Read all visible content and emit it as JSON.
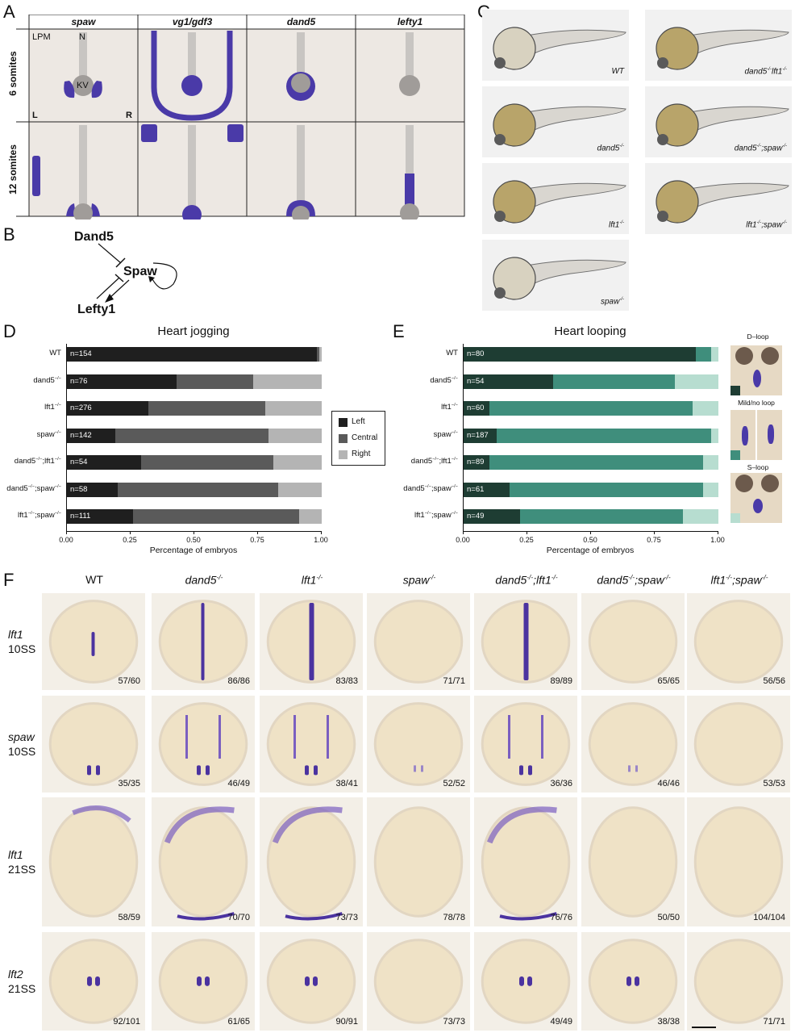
{
  "panel_letters": {
    "a": "A",
    "b": "B",
    "c": "C",
    "d": "D",
    "e": "E",
    "f": "F"
  },
  "panel_a": {
    "genes": [
      "spaw",
      "vg1/gdf3",
      "dand5",
      "lefty1"
    ],
    "stages": [
      "6 somites",
      "12 somites"
    ],
    "labels": {
      "lpm": "LPM",
      "n": "N",
      "kv": "KV",
      "l": "L",
      "r": "R"
    }
  },
  "panel_b": {
    "dand5": "Dand5",
    "spaw": "Spaw",
    "lefty1": "Lefty1"
  },
  "panel_c": {
    "left": [
      "WT",
      "dand5-/-",
      "lft1-/-",
      "spaw-/-"
    ],
    "right": [
      "dand5-/-lft1-/-",
      "dand5-/-;spaw-/-",
      "lft1-/-;spaw-/-"
    ]
  },
  "panel_d": {
    "title": "Heart jogging",
    "xlabel": "Percentage of embryos",
    "ticks": [
      "0.00",
      "0.25",
      "0.50",
      "0.75",
      "1.00"
    ],
    "legend": [
      "Left",
      "Central",
      "Right"
    ]
  },
  "panel_e": {
    "title": "Heart looping",
    "xlabel": "Percentage of embryos",
    "ticks": [
      "0.00",
      "0.25",
      "0.50",
      "0.75",
      "1.00"
    ],
    "legend": [
      "D–loop",
      "Mild/no loop",
      "S–loop"
    ]
  },
  "chart_data": [
    {
      "type": "bar",
      "title": "Heart jogging",
      "xlabel": "Percentage of embryos",
      "xlim": [
        0,
        1
      ],
      "categories": [
        "WT",
        "dand5−/−",
        "lft1−/−",
        "spaw−/−",
        "dand5−/−;lft1−/−",
        "dand5−/−;spaw−/−",
        "lft1−/−;spaw−/−"
      ],
      "n_labels": [
        "n=154",
        "n=76",
        "n=276",
        "n=142",
        "n=54",
        "n=58",
        "n=111"
      ],
      "series": [
        {
          "name": "Left",
          "color": "#1f1f1f",
          "values": [
            0.98,
            0.43,
            0.32,
            0.19,
            0.29,
            0.2,
            0.26
          ]
        },
        {
          "name": "Central",
          "color": "#5a5a5a",
          "values": [
            0.01,
            0.3,
            0.46,
            0.6,
            0.52,
            0.63,
            0.65
          ]
        },
        {
          "name": "Right",
          "color": "#b4b4b4",
          "values": [
            0.01,
            0.27,
            0.22,
            0.21,
            0.19,
            0.17,
            0.09
          ]
        }
      ],
      "legend_position": "right"
    },
    {
      "type": "bar",
      "title": "Heart looping",
      "xlabel": "Percentage of embryos",
      "xlim": [
        0,
        1
      ],
      "categories": [
        "WT",
        "dand5−/−",
        "lft1−/−",
        "spaw−/−",
        "dand5−/−;lft1−/−",
        "dand5−/−;spaw−/−",
        "lft1−/−;spaw−/−"
      ],
      "n_labels": [
        "n=80",
        "n=54",
        "n=60",
        "n=187",
        "n=89",
        "n=61",
        "n=49"
      ],
      "series": [
        {
          "name": "D–loop",
          "color": "#1e3d33",
          "values": [
            0.91,
            0.35,
            0.1,
            0.13,
            0.1,
            0.18,
            0.22
          ]
        },
        {
          "name": "Mild/no loop",
          "color": "#3f8e7c",
          "values": [
            0.06,
            0.48,
            0.8,
            0.84,
            0.84,
            0.76,
            0.64
          ]
        },
        {
          "name": "S–loop",
          "color": "#b7ddd0",
          "values": [
            0.03,
            0.17,
            0.1,
            0.03,
            0.06,
            0.06,
            0.14
          ]
        }
      ]
    }
  ],
  "panel_f": {
    "columns": [
      "WT",
      "dand5-/-",
      "lft1-/-",
      "spaw-/-",
      "dand5-/-;lft1-/-",
      "dand5-/-;spaw-/-",
      "lft1-/-;spaw-/-"
    ],
    "rows": [
      {
        "gene": "lft1",
        "stage": "10SS",
        "counts": [
          "57/60",
          "86/86",
          "83/83",
          "71/71",
          "89/89",
          "65/65",
          "56/56"
        ]
      },
      {
        "gene": "spaw",
        "stage": "10SS",
        "counts": [
          "35/35",
          "46/49",
          "38/41",
          "52/52",
          "36/36",
          "46/46",
          "53/53"
        ]
      },
      {
        "gene": "lft1",
        "stage": "21SS",
        "counts": [
          "58/59",
          "70/70",
          "73/73",
          "78/78",
          "76/76",
          "50/50",
          "104/104"
        ]
      },
      {
        "gene": "lft2",
        "stage": "21SS",
        "counts": [
          "92/101",
          "61/65",
          "90/91",
          "73/73",
          "49/49",
          "38/38",
          "71/71"
        ]
      }
    ]
  }
}
